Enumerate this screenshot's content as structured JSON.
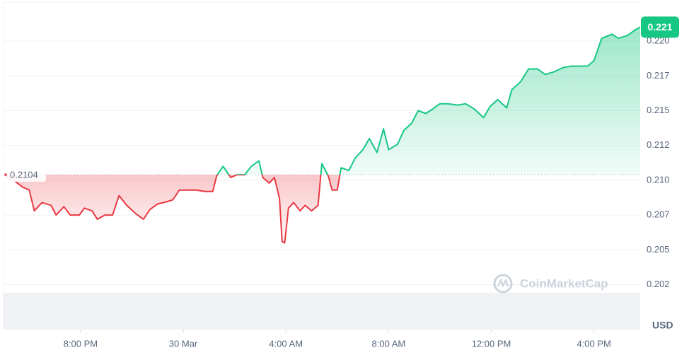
{
  "chart_data": {
    "type": "line",
    "x": [
      17,
      17.4,
      17.75,
      18,
      18.2,
      18.5,
      18.85,
      19.05,
      19.35,
      19.6,
      19.95,
      20.15,
      20.45,
      20.65,
      20.95,
      21.25,
      21.5,
      21.8,
      22.15,
      22.45,
      22.7,
      23,
      23.25,
      23.6,
      23.85,
      24.2,
      24.5,
      24.85,
      25.15,
      25.3,
      25.55,
      25.85,
      26.1,
      26.4,
      26.65,
      26.95,
      27.1,
      27.35,
      27.55,
      27.75,
      27.85,
      27.95,
      28.1,
      28.3,
      28.55,
      28.75,
      29,
      29.25,
      29.4,
      29.65,
      29.8,
      30,
      30.15,
      30.45,
      30.7,
      31,
      31.25,
      31.55,
      31.8,
      32,
      32.35,
      32.6,
      32.9,
      33.15,
      33.45,
      33.7,
      34,
      34.3,
      34.7,
      35,
      35.35,
      35.7,
      35.95,
      36.25,
      36.6,
      36.8,
      37.15,
      37.45,
      37.8,
      38.1,
      38.45,
      38.8,
      39.1,
      39.45,
      39.75,
      40,
      40.3,
      40.7,
      40.95,
      41.3,
      41.6,
      41.8
    ],
    "values": [
      0.2104,
      0.21,
      0.2095,
      0.2093,
      0.2078,
      0.2084,
      0.2082,
      0.2075,
      0.2081,
      0.2075,
      0.2075,
      0.208,
      0.2078,
      0.2072,
      0.2075,
      0.2075,
      0.2089,
      0.2082,
      0.2076,
      0.2072,
      0.2079,
      0.2083,
      0.2084,
      0.2086,
      0.2093,
      0.2093,
      0.2093,
      0.2092,
      0.2092,
      0.2103,
      0.211,
      0.2102,
      0.2104,
      0.2104,
      0.211,
      0.2114,
      0.2102,
      0.2098,
      0.2102,
      0.2087,
      0.2056,
      0.2055,
      0.208,
      0.2084,
      0.2078,
      0.2082,
      0.2078,
      0.2082,
      0.2112,
      0.2103,
      0.2093,
      0.2093,
      0.2109,
      0.2107,
      0.2116,
      0.2122,
      0.213,
      0.212,
      0.2137,
      0.2122,
      0.2126,
      0.2136,
      0.2141,
      0.215,
      0.2148,
      0.2151,
      0.2155,
      0.2155,
      0.2154,
      0.2155,
      0.2151,
      0.2145,
      0.2153,
      0.2158,
      0.2152,
      0.2165,
      0.2171,
      0.218,
      0.218,
      0.2176,
      0.2178,
      0.2181,
      0.2182,
      0.2182,
      0.2182,
      0.2186,
      0.2202,
      0.2205,
      0.2202,
      0.2204,
      0.2208,
      0.221
    ],
    "up_color": "#16c784",
    "down_color": "#ea3943",
    "baseline": 0.2104,
    "last_price": 0.221,
    "xlim": [
      17,
      41.8
    ],
    "xticks": [
      {
        "value": 20,
        "label": "8:00 PM"
      },
      {
        "value": 24,
        "label": "30 Mar"
      },
      {
        "value": 28,
        "label": "4:00 AM"
      },
      {
        "value": 32,
        "label": "8:00 AM"
      },
      {
        "value": 36,
        "label": "12:00 PM"
      },
      {
        "value": 40,
        "label": "4:00 PM"
      }
    ],
    "ylim": [
      0.2008,
      0.2228
    ],
    "yticks": [
      {
        "value": 0.2025,
        "label": "0.202"
      },
      {
        "value": 0.205,
        "label": "0.205"
      },
      {
        "value": 0.2075,
        "label": "0.207"
      },
      {
        "value": 0.21,
        "label": "0.210"
      },
      {
        "value": 0.2125,
        "label": "0.212"
      },
      {
        "value": 0.215,
        "label": "0.215"
      },
      {
        "value": 0.2175,
        "label": "0.217"
      },
      {
        "value": 0.22,
        "label": "0.220"
      }
    ],
    "grid": true,
    "y_unit_label": "USD",
    "watermark": "CoinMarketCap"
  }
}
